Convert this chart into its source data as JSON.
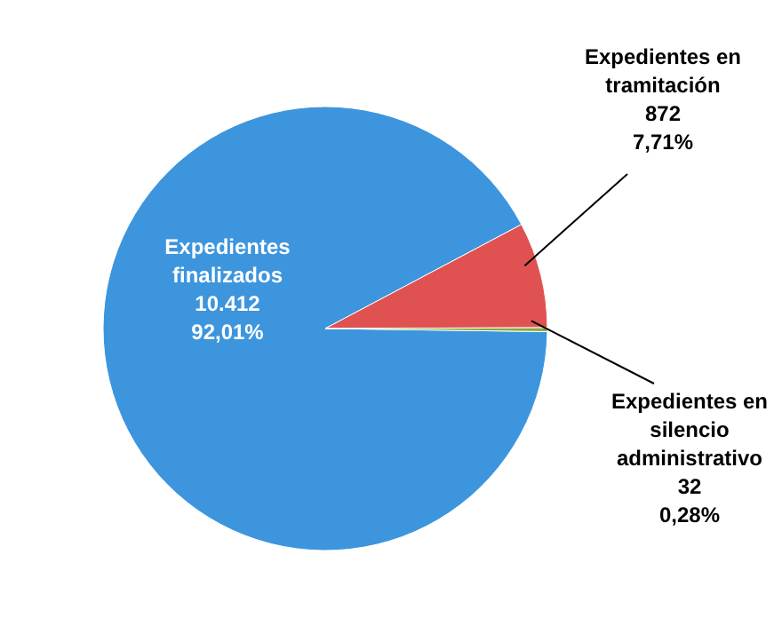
{
  "chart_data": {
    "type": "pie",
    "categories": [
      "Expedientes finalizados",
      "Expedientes en tramitación",
      "Expedientes en silencio administrativo"
    ],
    "values": [
      10412,
      872,
      32
    ],
    "colors": [
      "#3d95de",
      "#e05252",
      "#8aa83a"
    ],
    "value_labels": [
      "10.412\n92,01%",
      "872\n7,71%",
      "32\n0,28%"
    ]
  }
}
